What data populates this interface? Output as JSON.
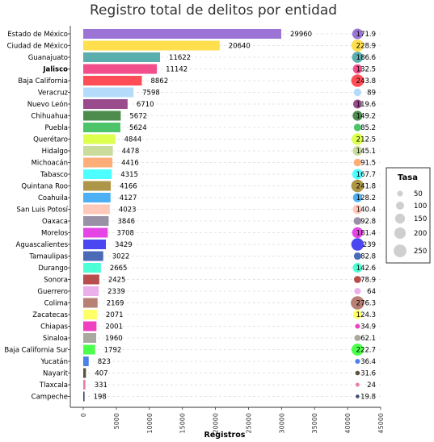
{
  "chart_data": {
    "type": "bar",
    "title": "Registro total de delitos por entidad",
    "xlabel": "Registros",
    "ylabel": "",
    "xlim": [
      0,
      45000
    ],
    "x_ticks": [
      0,
      5000,
      10000,
      15000,
      20000,
      25000,
      30000,
      35000,
      40000,
      45000
    ],
    "grid": "horizontal dashed",
    "highlight": {
      "category": "Jalisco",
      "color": "#ff8c00"
    },
    "categories": [
      "Estado de México",
      "Ciudad de México",
      "Guanajuato",
      "Jalisco",
      "Baja California",
      "Veracruz",
      "Nuevo León",
      "Chihuahua",
      "Puebla",
      "Querétaro",
      "Hidalgo",
      "Michoacán",
      "Tabasco",
      "Quintana Roo",
      "Coahuila",
      "San Luis Potosí",
      "Oaxaca",
      "Morelos",
      "Aguascalientes",
      "Tamaulipas",
      "Durango",
      "Sonora",
      "Guerrero",
      "Colima",
      "Zacatecas",
      "Chiapas",
      "Sinaloa",
      "Baja California Sur",
      "Yucatán",
      "Nayarit",
      "Tlaxcala",
      "Campeche"
    ],
    "values": [
      29960,
      20640,
      11622,
      11142,
      8862,
      7598,
      6710,
      5672,
      5624,
      4844,
      4478,
      4416,
      4315,
      4166,
      4127,
      4023,
      3846,
      3708,
      3429,
      3022,
      2665,
      2425,
      2339,
      2169,
      2071,
      2001,
      1960,
      1792,
      823,
      407,
      331,
      198
    ],
    "value_labels": [
      "29960",
      "20640",
      "11622",
      "11142",
      "8862",
      "7598",
      "6710",
      "5672",
      "5624",
      "4844",
      "4478",
      "4416",
      "4315",
      "4166",
      "4127",
      "4023",
      "3846",
      "3708",
      "3429",
      "3022",
      "2665",
      "2425",
      "2339",
      "2169",
      "2071",
      "2001",
      "1960",
      "1792",
      "823",
      "407",
      "331",
      "198"
    ],
    "tasa": [
      171.9,
      228.9,
      186.6,
      132.5,
      243.8,
      89,
      119.6,
      149.2,
      85.2,
      212.5,
      145.1,
      91.5,
      167.7,
      241.8,
      128.2,
      140.4,
      92.8,
      181.4,
      239,
      82.8,
      142.6,
      78.9,
      64,
      276.3,
      124.3,
      34.9,
      62.1,
      222.7,
      36.4,
      31.6,
      24,
      19.8
    ],
    "tasa_labels": [
      "171.9",
      "228.9",
      "186.6",
      "132.5",
      "243.8",
      "89",
      "119.6",
      "149.2",
      "85.2",
      "212.5",
      "145.1",
      "91.5",
      "167.7",
      "241.8",
      "128.2",
      "140.4",
      "92.8",
      "181.4",
      "239",
      "82.8",
      "142.6",
      "78.9",
      "64",
      "276.3",
      "124.3",
      "34.9",
      "62.1",
      "222.7",
      "36.4",
      "31.6",
      "24",
      "19.8"
    ],
    "colors": [
      "#9b74d6",
      "#ffdf4d",
      "#5aaeae",
      "#f14e8b",
      "#ff4d57",
      "#b4dcfa",
      "#9a4b8c",
      "#4d8c4d",
      "#4dc46a",
      "#ddff4d",
      "#c9dc9c",
      "#ffae7a",
      "#4dffff",
      "#ae9648",
      "#4db0f5",
      "#ffc8b8",
      "#9a91a7",
      "#e645e6",
      "#4a47f2",
      "#4a6ab8",
      "#4dffd4",
      "#b84d4d",
      "#ebb0eb",
      "#b87f75",
      "#ffff66",
      "#ee40c0",
      "#a9a9a0",
      "#4dff4d",
      "#4d7fea",
      "#5e5240",
      "#e87fae",
      "#3d4a6e"
    ],
    "point_x": 41500,
    "legend": {
      "title": "Tasa",
      "position": "right",
      "values": [
        50,
        100,
        150,
        200,
        250
      ],
      "labels": [
        "50",
        "100",
        "150",
        "200",
        "250"
      ]
    }
  }
}
